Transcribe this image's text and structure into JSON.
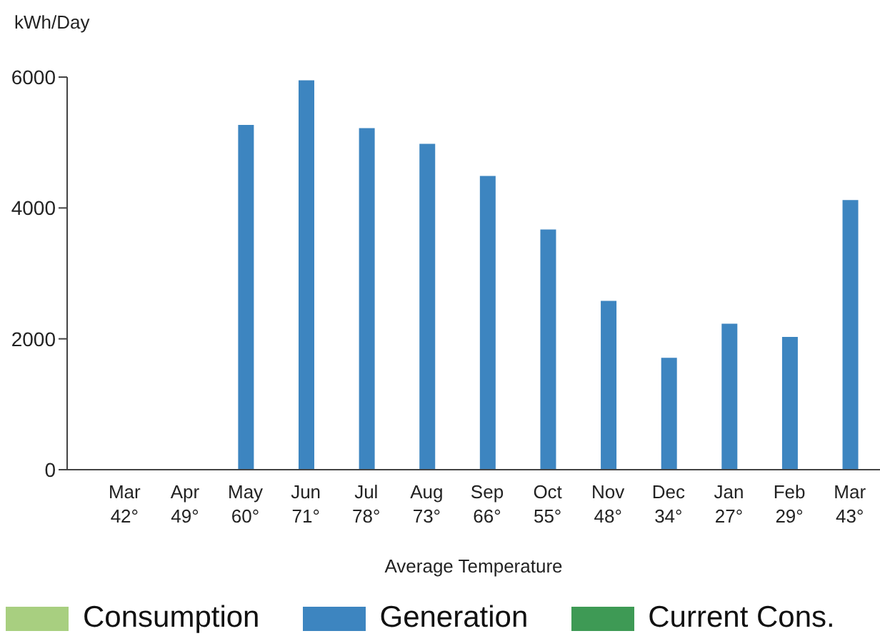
{
  "chart_data": {
    "type": "bar",
    "ylabel": "kWh/Day",
    "xlabel": "Average Temperature",
    "categories": [
      "Mar 42°",
      "Apr 49°",
      "May 60°",
      "Jun 71°",
      "Jul 78°",
      "Aug 73°",
      "Sep 66°",
      "Oct 55°",
      "Nov 48°",
      "Dec 34°",
      "Jan 27°",
      "Feb 29°",
      "Mar 43°"
    ],
    "series": [
      {
        "name": "Consumption",
        "color": "#a8cf80",
        "values": [
          null,
          null,
          null,
          null,
          null,
          null,
          null,
          null,
          null,
          null,
          null,
          null,
          null
        ]
      },
      {
        "name": "Generation",
        "color": "#3d85c0",
        "values": [
          0,
          0,
          5270,
          5950,
          5220,
          4980,
          4490,
          3670,
          2580,
          1710,
          2230,
          2030,
          4120
        ]
      },
      {
        "name": "Current Cons.",
        "color": "#3e9a55",
        "values": [
          null,
          null,
          null,
          null,
          null,
          null,
          null,
          null,
          null,
          null,
          null,
          null,
          null
        ]
      }
    ],
    "ylim": [
      0,
      6000
    ],
    "yticks": [
      0,
      2000,
      4000,
      6000
    ],
    "grid": false,
    "legend": "bottom"
  }
}
